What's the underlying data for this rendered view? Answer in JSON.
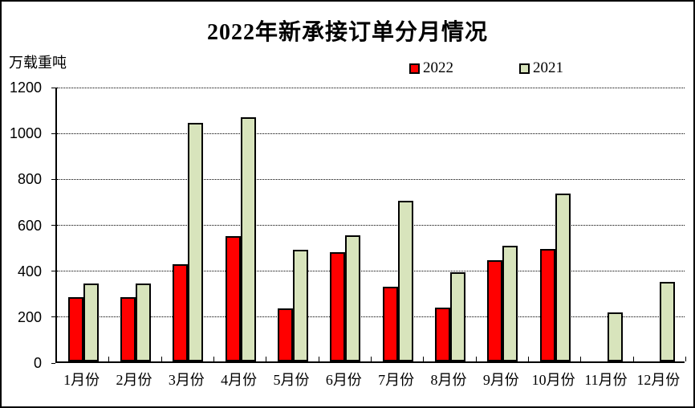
{
  "title": "2022年新承接订单分月情况",
  "y_axis_unit_label": "万载重吨",
  "legend": {
    "items": [
      {
        "label": "2022",
        "color": "#FF0000"
      },
      {
        "label": "2021",
        "color": "#D8E4BC"
      }
    ]
  },
  "chart_data": {
    "type": "bar",
    "title": "2022年新承接订单分月情况",
    "ylabel": "万载重吨",
    "xlabel": "",
    "categories": [
      "1月份",
      "2月份",
      "3月份",
      "4月份",
      "5月份",
      "6月份",
      "7月份",
      "8月份",
      "9月份",
      "10月份",
      "11月份",
      "12月份"
    ],
    "series": [
      {
        "name": "2022",
        "color": "#FF0000",
        "values": [
          280,
          280,
          425,
          545,
          230,
          475,
          325,
          233,
          440,
          490,
          0,
          0
        ]
      },
      {
        "name": "2021",
        "color": "#D8E4BC",
        "values": [
          340,
          340,
          1040,
          1065,
          485,
          550,
          700,
          390,
          505,
          730,
          215,
          345
        ]
      }
    ],
    "ylim": [
      0,
      1200
    ],
    "yticks": [
      0,
      200,
      400,
      600,
      800,
      1000,
      1200
    ],
    "grid": "horizontal-dotted",
    "legend_position": "top-center",
    "bar_border_color": "#000000"
  }
}
